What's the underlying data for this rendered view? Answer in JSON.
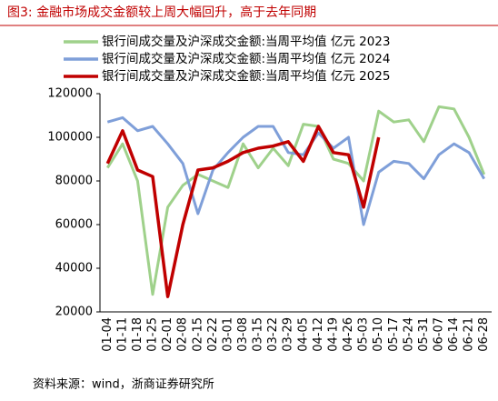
{
  "title": "图3:  金融市场成交金额较上周大幅回升，高于去年同期",
  "source": "资料来源：wind，浙商证券研究所",
  "chart_data": {
    "type": "line",
    "categories": [
      "01-04",
      "01-11",
      "01-18",
      "01-25",
      "02-01",
      "02-08",
      "02-15",
      "02-22",
      "03-01",
      "03-08",
      "03-15",
      "03-22",
      "03-29",
      "04-05",
      "04-12",
      "04-19",
      "04-26",
      "05-03",
      "05-10",
      "05-17",
      "05-24",
      "05-31",
      "06-07",
      "06-14",
      "06-21",
      "06-28"
    ],
    "series": [
      {
        "name": "银行间成交量及沪深成交金额:当周平均值 亿元 2023",
        "color": "#9fd18b",
        "values": [
          86000,
          97000,
          80000,
          28000,
          68000,
          78000,
          83000,
          80000,
          77000,
          97000,
          86000,
          95000,
          87000,
          106000,
          105000,
          90000,
          88000,
          80000,
          112000,
          107000,
          108000,
          98000,
          114000,
          113000,
          100000,
          83000
        ]
      },
      {
        "name": "银行间成交量及沪深成交金额:当周平均值 亿元 2024",
        "color": "#7f9fd9",
        "values": [
          107000,
          109000,
          103000,
          105000,
          97000,
          88000,
          65000,
          85000,
          93000,
          100000,
          105000,
          105000,
          93000,
          92000,
          102000,
          95000,
          100000,
          60000,
          84000,
          89000,
          88000,
          81000,
          92000,
          97000,
          93000,
          81000
        ]
      },
      {
        "name": "银行间成交量及沪深成交金额:当周平均值 亿元 2025",
        "color": "#c00000",
        "values": [
          88000,
          103000,
          85000,
          82000,
          27000,
          60000,
          85000,
          86000,
          89000,
          93000,
          95000,
          96000,
          98000,
          89000,
          105000,
          93000,
          92000,
          68000,
          100000,
          null,
          null,
          null,
          null,
          null,
          null,
          null
        ]
      }
    ],
    "ylim": [
      20000,
      120000
    ],
    "yticks": [
      20000,
      40000,
      60000,
      80000,
      100000,
      120000
    ]
  }
}
